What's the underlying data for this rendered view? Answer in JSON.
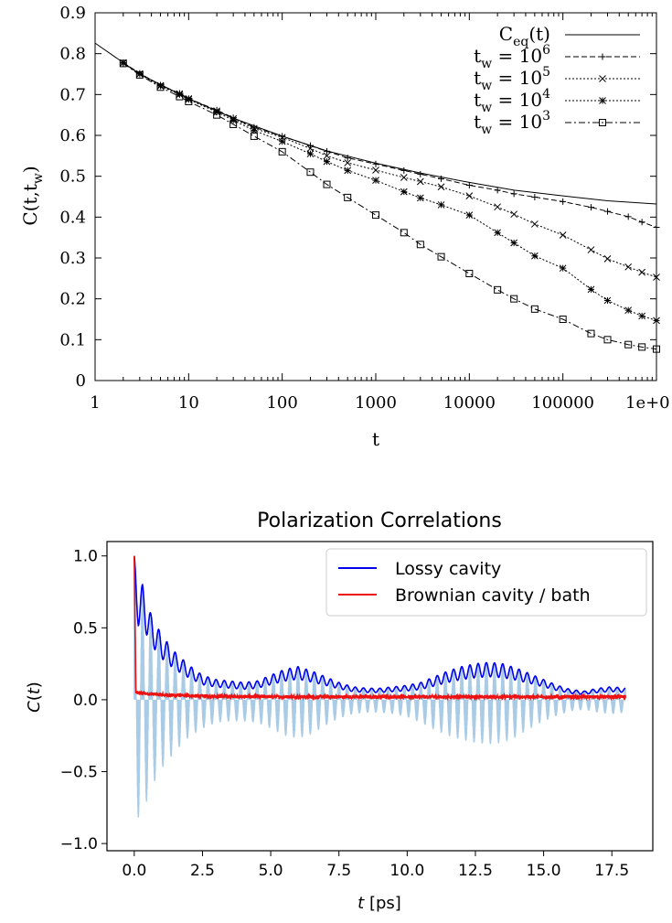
{
  "chart_data": [
    {
      "type": "line",
      "xscale": "log",
      "xlabel": "t",
      "ylabel": {
        "main": "C(t,t",
        "sub": "w",
        "close": ")"
      },
      "xlim": [
        1,
        1000000
      ],
      "ylim": [
        0,
        0.9
      ],
      "xtick_labels": [
        "1",
        "10",
        "100",
        "1000",
        "10000",
        "100000",
        "1e+0"
      ],
      "ytick_labels": [
        "0",
        "0.1",
        "0.2",
        "0.3",
        "0.4",
        "0.5",
        "0.6",
        "0.7",
        "0.8",
        "0.9"
      ],
      "grid": false,
      "legend_position": "top-right",
      "series": [
        {
          "name": "C_eq(t)",
          "legend": {
            "main": "C",
            "sub": "eq",
            "sup": "",
            "tail": "(t)"
          },
          "style": "solid",
          "marker": "none",
          "x": [
            1,
            3,
            10,
            30,
            100,
            300,
            1000,
            3000,
            10000,
            30000,
            100000,
            300000,
            1000000
          ],
          "y": [
            0.826,
            0.75,
            0.69,
            0.642,
            0.598,
            0.562,
            0.532,
            0.508,
            0.485,
            0.466,
            0.452,
            0.44,
            0.432
          ]
        },
        {
          "name": "t_w = 10^6",
          "legend": {
            "main": "t",
            "sub": "w",
            "sup": "6",
            "tail": " = 10"
          },
          "style": "dashed",
          "marker": "plus",
          "x": [
            2,
            3,
            5,
            8,
            10,
            20,
            30,
            50,
            100,
            200,
            300,
            500,
            1000,
            2000,
            3000,
            5000,
            10000,
            20000,
            30000,
            50000,
            100000,
            200000,
            300000,
            500000,
            700000,
            1000000
          ],
          "y": [
            0.778,
            0.752,
            0.723,
            0.703,
            0.69,
            0.662,
            0.643,
            0.62,
            0.598,
            0.575,
            0.561,
            0.545,
            0.53,
            0.514,
            0.505,
            0.494,
            0.478,
            0.466,
            0.457,
            0.449,
            0.438,
            0.424,
            0.414,
            0.401,
            0.388,
            0.375
          ]
        },
        {
          "name": "t_w = 10^5",
          "legend": {
            "main": "t",
            "sub": "w",
            "sup": "5",
            "tail": " = 10"
          },
          "style": "dotted",
          "marker": "cross",
          "x": [
            2,
            3,
            5,
            8,
            10,
            20,
            30,
            50,
            100,
            200,
            300,
            500,
            1000,
            2000,
            3000,
            5000,
            10000,
            20000,
            30000,
            50000,
            100000,
            200000,
            300000,
            500000,
            700000,
            1000000
          ],
          "y": [
            0.778,
            0.751,
            0.722,
            0.702,
            0.69,
            0.66,
            0.641,
            0.617,
            0.595,
            0.568,
            0.55,
            0.533,
            0.515,
            0.497,
            0.487,
            0.474,
            0.452,
            0.425,
            0.407,
            0.383,
            0.356,
            0.32,
            0.298,
            0.278,
            0.265,
            0.253
          ]
        },
        {
          "name": "t_w = 10^4",
          "legend": {
            "main": "t",
            "sub": "w",
            "sup": "4",
            "tail": " = 10"
          },
          "style": "dotted",
          "marker": "asterisk",
          "x": [
            2,
            3,
            5,
            8,
            10,
            20,
            30,
            50,
            100,
            200,
            300,
            500,
            1000,
            2000,
            3000,
            5000,
            10000,
            20000,
            30000,
            50000,
            100000,
            200000,
            300000,
            500000,
            700000,
            1000000
          ],
          "y": [
            0.777,
            0.75,
            0.721,
            0.7,
            0.688,
            0.657,
            0.637,
            0.612,
            0.585,
            0.555,
            0.536,
            0.514,
            0.49,
            0.462,
            0.447,
            0.43,
            0.405,
            0.362,
            0.337,
            0.305,
            0.275,
            0.223,
            0.196,
            0.172,
            0.158,
            0.147
          ]
        },
        {
          "name": "t_w = 10^3",
          "legend": {
            "main": "t",
            "sub": "w",
            "sup": "3",
            "tail": " = 10"
          },
          "style": "dashdot",
          "marker": "square",
          "x": [
            2,
            3,
            5,
            8,
            10,
            20,
            30,
            50,
            100,
            200,
            300,
            500,
            1000,
            2000,
            3000,
            5000,
            10000,
            20000,
            30000,
            50000,
            100000,
            200000,
            300000,
            500000,
            700000,
            1000000
          ],
          "y": [
            0.776,
            0.748,
            0.718,
            0.695,
            0.683,
            0.65,
            0.627,
            0.598,
            0.56,
            0.51,
            0.48,
            0.448,
            0.405,
            0.362,
            0.333,
            0.303,
            0.262,
            0.222,
            0.2,
            0.175,
            0.15,
            0.115,
            0.1,
            0.088,
            0.082,
            0.077
          ]
        }
      ]
    },
    {
      "type": "line",
      "title": "Polarization Correlations",
      "xlabel": {
        "var": "t",
        "unit": " [ps]"
      },
      "ylabel": {
        "var": "C",
        "args": "(",
        "var2": "t",
        "close": ")"
      },
      "xlim": [
        -1,
        19
      ],
      "ylim": [
        -1.05,
        1.1
      ],
      "xtick_labels": [
        "0.0",
        "2.5",
        "5.0",
        "7.5",
        "10.0",
        "12.5",
        "15.0",
        "17.5"
      ],
      "ytick_labels": [
        "−1.0",
        "−0.5",
        "0.0",
        "0.5",
        "1.0"
      ],
      "grid": false,
      "legend_position": "top-right",
      "colors": {
        "lossy": "#0000ee",
        "brownian": "#ee1111",
        "fill": "#a9cbe6"
      },
      "envelope": {
        "t": [
          0.0,
          0.15,
          0.3,
          0.6,
          1.0,
          1.5,
          2.0,
          2.5,
          3.0,
          3.5,
          4.0,
          4.5,
          5.0,
          5.5,
          6.0,
          6.5,
          7.0,
          7.5,
          8.0,
          8.5,
          9.0,
          9.5,
          10.0,
          10.5,
          11.0,
          11.5,
          12.0,
          12.5,
          13.0,
          13.5,
          14.0,
          14.5,
          15.0,
          15.5,
          16.0,
          16.5,
          17.0,
          17.5,
          18.0
        ],
        "upper": [
          1.0,
          0.8,
          0.8,
          0.6,
          0.45,
          0.33,
          0.24,
          0.17,
          0.14,
          0.13,
          0.12,
          0.13,
          0.17,
          0.21,
          0.23,
          0.2,
          0.16,
          0.12,
          0.09,
          0.08,
          0.08,
          0.09,
          0.1,
          0.12,
          0.16,
          0.2,
          0.23,
          0.25,
          0.26,
          0.25,
          0.22,
          0.18,
          0.14,
          0.1,
          0.07,
          0.06,
          0.08,
          0.09,
          0.08
        ],
        "lower": [
          -0.95,
          -0.82,
          -0.8,
          -0.62,
          -0.48,
          -0.36,
          -0.26,
          -0.2,
          -0.16,
          -0.15,
          -0.15,
          -0.16,
          -0.2,
          -0.25,
          -0.27,
          -0.24,
          -0.18,
          -0.13,
          -0.1,
          -0.09,
          -0.09,
          -0.1,
          -0.12,
          -0.16,
          -0.21,
          -0.25,
          -0.28,
          -0.3,
          -0.31,
          -0.3,
          -0.26,
          -0.2,
          -0.15,
          -0.11,
          -0.08,
          -0.07,
          -0.09,
          -0.1,
          -0.09
        ]
      },
      "oscillation_period_ps": 0.3,
      "series": [
        {
          "name": "Lossy cavity"
        },
        {
          "name": "Brownian cavity / bath"
        }
      ]
    }
  ]
}
